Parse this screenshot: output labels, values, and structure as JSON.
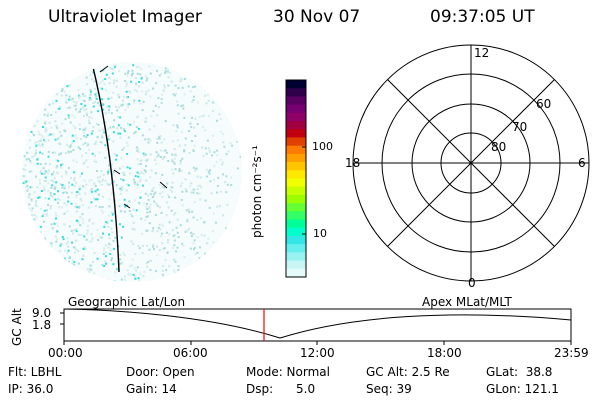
{
  "header": {
    "instrument": "Ultraviolet Imager",
    "date": "30 Nov 07",
    "time": "09:37:05 UT"
  },
  "colorbar": {
    "unit_label": "photon cm⁻²s⁻¹",
    "ticks": [
      "100",
      "10"
    ],
    "colors": [
      "#000033",
      "#30004a",
      "#5a0060",
      "#780070",
      "#8c0068",
      "#a00040",
      "#c00010",
      "#e04000",
      "#ff7a00",
      "#ff9f00",
      "#ffc600",
      "#ffe800",
      "#f2ff00",
      "#c8ff00",
      "#9cff00",
      "#66ff33",
      "#33ff66",
      "#00ff99",
      "#00ffcc",
      "#33e6e6",
      "#66eeee",
      "#99f2f2",
      "#c8f6f6",
      "#e6fafa"
    ]
  },
  "polar_plot": {
    "mlt_labels": {
      "top": "12",
      "left": "18",
      "right": "6",
      "bottom": "0"
    },
    "lat_labels": [
      "60",
      "70",
      "80"
    ]
  },
  "timeline": {
    "y_axis_label": "GC Alt",
    "y_ticks": [
      "9.0",
      "1.8"
    ],
    "left_label": "Geographic Lat/Lon",
    "right_label": "Apex MLat/MLT",
    "x_ticks": [
      "00:00",
      "06:00",
      "12:00",
      "18:00",
      "23:59"
    ],
    "current_time_color": "#ff0000"
  },
  "info": {
    "filter": "Flt: LBHL",
    "ip": "IP: 36.0",
    "door": "Door: Open",
    "gain": "Gain: 14",
    "mode": "Mode: Normal",
    "dsp": "Dsp:      5.0",
    "gc_alt": "GC Alt: 2.5 Re",
    "seq": "Seq: 39",
    "glat": "GLat:  38.8",
    "glon": "GLon: 121.1"
  }
}
